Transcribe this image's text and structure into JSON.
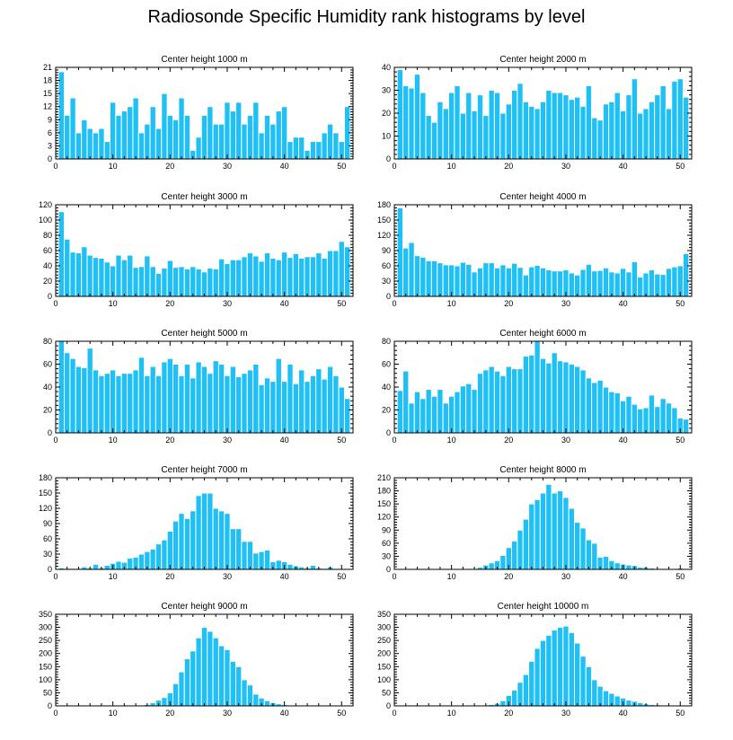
{
  "title": "Radiosonde Specific Humidity rank histograms by level",
  "colors": {
    "bar": "#1ec0f5",
    "bar_edge": "#ffffff",
    "axis": "#000000",
    "background": "#ffffff"
  },
  "chart_data": [
    {
      "type": "bar",
      "title": "Center height 1000 m",
      "xlabel": "",
      "ylabel": "",
      "xlim": [
        0,
        52
      ],
      "ylim": [
        0,
        21
      ],
      "xticks": [
        0,
        10,
        20,
        30,
        40,
        50
      ],
      "yticks": [
        0,
        3,
        6,
        9,
        12,
        15,
        18,
        21
      ],
      "x": [
        1,
        2,
        3,
        4,
        5,
        6,
        7,
        8,
        9,
        10,
        11,
        12,
        13,
        14,
        15,
        16,
        17,
        18,
        19,
        20,
        21,
        22,
        23,
        24,
        25,
        26,
        27,
        28,
        29,
        30,
        31,
        32,
        33,
        34,
        35,
        36,
        37,
        38,
        39,
        40,
        41,
        42,
        43,
        44,
        45,
        46,
        47,
        48,
        49,
        50,
        51
      ],
      "values": [
        20,
        10,
        14,
        6,
        9,
        7,
        6,
        7,
        4,
        13,
        10,
        11,
        12,
        14,
        6,
        8,
        12,
        7,
        15,
        10,
        9,
        14,
        10,
        2,
        5,
        10,
        12,
        8,
        8,
        13,
        11,
        13,
        8,
        10,
        13,
        6,
        10,
        8,
        11,
        12,
        4,
        5,
        5,
        2,
        4,
        4,
        6,
        8,
        6,
        4,
        12
      ]
    },
    {
      "type": "bar",
      "title": "Center height 2000 m",
      "xlabel": "",
      "ylabel": "",
      "xlim": [
        0,
        52
      ],
      "ylim": [
        0,
        40
      ],
      "xticks": [
        0,
        10,
        20,
        30,
        40,
        50
      ],
      "yticks": [
        0,
        10,
        20,
        30,
        40
      ],
      "x": [
        1,
        2,
        3,
        4,
        5,
        6,
        7,
        8,
        9,
        10,
        11,
        12,
        13,
        14,
        15,
        16,
        17,
        18,
        19,
        20,
        21,
        22,
        23,
        24,
        25,
        26,
        27,
        28,
        29,
        30,
        31,
        32,
        33,
        34,
        35,
        36,
        37,
        38,
        39,
        40,
        41,
        42,
        43,
        44,
        45,
        46,
        47,
        48,
        49,
        50,
        51
      ],
      "values": [
        39,
        32,
        31,
        37,
        29,
        19,
        16,
        25,
        22,
        29,
        32,
        20,
        29,
        21,
        28,
        19,
        30,
        29,
        20,
        24,
        30,
        33,
        25,
        23,
        22,
        25,
        30,
        29,
        29,
        28,
        26,
        27,
        23,
        32,
        18,
        17,
        24,
        25,
        29,
        21,
        28,
        35,
        20,
        22,
        25,
        28,
        32,
        22,
        34,
        35,
        27
      ]
    },
    {
      "type": "bar",
      "title": "Center height 3000 m",
      "xlabel": "",
      "ylabel": "",
      "xlim": [
        0,
        52
      ],
      "ylim": [
        0,
        120
      ],
      "xticks": [
        0,
        10,
        20,
        30,
        40,
        50
      ],
      "yticks": [
        0,
        20,
        40,
        60,
        80,
        100,
        120
      ],
      "x": [
        1,
        2,
        3,
        4,
        5,
        6,
        7,
        8,
        9,
        10,
        11,
        12,
        13,
        14,
        15,
        16,
        17,
        18,
        19,
        20,
        21,
        22,
        23,
        24,
        25,
        26,
        27,
        28,
        29,
        30,
        31,
        32,
        33,
        34,
        35,
        36,
        37,
        38,
        39,
        40,
        41,
        42,
        43,
        44,
        45,
        46,
        47,
        48,
        49,
        50,
        51
      ],
      "values": [
        111,
        75,
        58,
        57,
        65,
        54,
        51,
        50,
        45,
        40,
        54,
        48,
        54,
        38,
        39,
        53,
        39,
        30,
        37,
        47,
        38,
        39,
        36,
        39,
        36,
        32,
        37,
        36,
        49,
        43,
        48,
        48,
        52,
        57,
        53,
        46,
        57,
        50,
        48,
        58,
        51,
        56,
        50,
        52,
        52,
        57,
        50,
        60,
        60,
        72,
        65
      ]
    },
    {
      "type": "bar",
      "title": "Center height 4000 m",
      "xlabel": "",
      "ylabel": "",
      "xlim": [
        0,
        52
      ],
      "ylim": [
        0,
        180
      ],
      "xticks": [
        0,
        10,
        20,
        30,
        40,
        50
      ],
      "yticks": [
        0,
        30,
        60,
        90,
        120,
        150,
        180
      ],
      "x": [
        1,
        2,
        3,
        4,
        5,
        6,
        7,
        8,
        9,
        10,
        11,
        12,
        13,
        14,
        15,
        16,
        17,
        18,
        19,
        20,
        21,
        22,
        23,
        24,
        25,
        26,
        27,
        28,
        29,
        30,
        31,
        32,
        33,
        34,
        35,
        36,
        37,
        38,
        39,
        40,
        41,
        42,
        43,
        44,
        45,
        46,
        47,
        48,
        49,
        50,
        51
      ],
      "values": [
        174,
        95,
        106,
        80,
        77,
        70,
        70,
        66,
        62,
        62,
        60,
        67,
        63,
        48,
        56,
        66,
        66,
        56,
        62,
        56,
        65,
        57,
        42,
        58,
        61,
        56,
        52,
        50,
        50,
        52,
        46,
        42,
        53,
        63,
        50,
        51,
        56,
        48,
        46,
        55,
        48,
        68,
        38,
        46,
        52,
        44,
        43,
        55,
        58,
        60,
        84
      ]
    },
    {
      "type": "bar",
      "title": "Center height 5000 m",
      "xlabel": "",
      "ylabel": "",
      "xlim": [
        0,
        52
      ],
      "ylim": [
        0,
        80
      ],
      "xticks": [
        0,
        10,
        20,
        30,
        40,
        50
      ],
      "yticks": [
        0,
        20,
        40,
        60,
        80
      ],
      "x": [
        1,
        2,
        3,
        4,
        5,
        6,
        7,
        8,
        9,
        10,
        11,
        12,
        13,
        14,
        15,
        16,
        17,
        18,
        19,
        20,
        21,
        22,
        23,
        24,
        25,
        26,
        27,
        28,
        29,
        30,
        31,
        32,
        33,
        34,
        35,
        36,
        37,
        38,
        39,
        40,
        41,
        42,
        43,
        44,
        45,
        46,
        47,
        48,
        49,
        50,
        51
      ],
      "values": [
        80,
        70,
        65,
        58,
        57,
        74,
        55,
        50,
        52,
        55,
        50,
        52,
        52,
        55,
        66,
        50,
        58,
        50,
        62,
        65,
        60,
        50,
        60,
        48,
        62,
        58,
        52,
        63,
        60,
        50,
        58,
        49,
        52,
        55,
        60,
        42,
        48,
        45,
        65,
        45,
        60,
        43,
        55,
        45,
        50,
        56,
        47,
        58,
        50,
        40,
        30
      ]
    },
    {
      "type": "bar",
      "title": "Center height 6000 m",
      "xlabel": "",
      "ylabel": "",
      "xlim": [
        0,
        52
      ],
      "ylim": [
        0,
        80
      ],
      "xticks": [
        0,
        10,
        20,
        30,
        40,
        50
      ],
      "yticks": [
        0,
        20,
        40,
        60,
        80
      ],
      "x": [
        1,
        2,
        3,
        4,
        5,
        6,
        7,
        8,
        9,
        10,
        11,
        12,
        13,
        14,
        15,
        16,
        17,
        18,
        19,
        20,
        21,
        22,
        23,
        24,
        25,
        26,
        27,
        28,
        29,
        30,
        31,
        32,
        33,
        34,
        35,
        36,
        37,
        38,
        39,
        40,
        41,
        42,
        43,
        44,
        45,
        46,
        47,
        48,
        49,
        50,
        51
      ],
      "values": [
        37,
        54,
        26,
        36,
        30,
        38,
        32,
        38,
        26,
        32,
        36,
        41,
        43,
        38,
        52,
        55,
        58,
        54,
        50,
        58,
        56,
        56,
        67,
        68,
        80,
        65,
        61,
        70,
        63,
        62,
        60,
        58,
        55,
        48,
        44,
        46,
        40,
        36,
        35,
        28,
        32,
        25,
        21,
        22,
        33,
        23,
        30,
        26,
        22,
        13,
        12
      ]
    },
    {
      "type": "bar",
      "title": "Center height 7000 m",
      "xlabel": "",
      "ylabel": "",
      "xlim": [
        0,
        52
      ],
      "ylim": [
        0,
        180
      ],
      "xticks": [
        0,
        10,
        20,
        30,
        40,
        50
      ],
      "yticks": [
        0,
        30,
        60,
        90,
        120,
        150,
        180
      ],
      "x": [
        1,
        2,
        3,
        4,
        5,
        6,
        7,
        8,
        9,
        10,
        11,
        12,
        13,
        14,
        15,
        16,
        17,
        18,
        19,
        20,
        21,
        22,
        23,
        24,
        25,
        26,
        27,
        28,
        29,
        30,
        31,
        32,
        33,
        34,
        35,
        36,
        37,
        38,
        39,
        40,
        41,
        42,
        43,
        44,
        45,
        46,
        47,
        48,
        49,
        50,
        51
      ],
      "values": [
        3,
        2,
        2,
        2,
        5,
        3,
        10,
        3,
        8,
        12,
        16,
        14,
        22,
        24,
        30,
        35,
        40,
        50,
        58,
        75,
        95,
        110,
        100,
        115,
        145,
        150,
        150,
        120,
        115,
        110,
        80,
        80,
        55,
        55,
        32,
        35,
        38,
        15,
        18,
        15,
        10,
        7,
        5,
        3,
        8,
        3,
        2,
        5,
        1,
        1,
        0
      ]
    },
    {
      "type": "bar",
      "title": "Center height 8000 m",
      "xlabel": "",
      "ylabel": "",
      "xlim": [
        0,
        52
      ],
      "ylim": [
        0,
        210
      ],
      "xticks": [
        0,
        10,
        20,
        30,
        40,
        50
      ],
      "yticks": [
        0,
        30,
        60,
        90,
        120,
        150,
        180,
        210
      ],
      "x": [
        1,
        2,
        3,
        4,
        5,
        6,
        7,
        8,
        9,
        10,
        11,
        12,
        13,
        14,
        15,
        16,
        17,
        18,
        19,
        20,
        21,
        22,
        23,
        24,
        25,
        26,
        27,
        28,
        29,
        30,
        31,
        32,
        33,
        34,
        35,
        36,
        37,
        38,
        39,
        40,
        41,
        42,
        43,
        44,
        45,
        46,
        47,
        48,
        49,
        50,
        51
      ],
      "values": [
        0,
        0,
        0,
        0,
        0,
        0,
        0,
        0,
        0,
        0,
        0,
        0,
        1,
        2,
        5,
        10,
        15,
        20,
        32,
        50,
        65,
        90,
        115,
        150,
        160,
        175,
        195,
        175,
        180,
        165,
        140,
        108,
        95,
        68,
        60,
        28,
        30,
        20,
        15,
        12,
        10,
        9,
        5,
        5,
        3,
        2,
        2,
        1,
        1,
        3,
        0
      ]
    },
    {
      "type": "bar",
      "title": "Center height 9000 m",
      "xlabel": "",
      "ylabel": "",
      "xlim": [
        0,
        52
      ],
      "ylim": [
        0,
        350
      ],
      "xticks": [
        0,
        10,
        20,
        30,
        40,
        50
      ],
      "yticks": [
        0,
        50,
        100,
        150,
        200,
        250,
        300,
        350
      ],
      "x": [
        1,
        2,
        3,
        4,
        5,
        6,
        7,
        8,
        9,
        10,
        11,
        12,
        13,
        14,
        15,
        16,
        17,
        18,
        19,
        20,
        21,
        22,
        23,
        24,
        25,
        26,
        27,
        28,
        29,
        30,
        31,
        32,
        33,
        34,
        35,
        36,
        37,
        38,
        39,
        40,
        41,
        42,
        43,
        44,
        45,
        46,
        47,
        48,
        49,
        50,
        51
      ],
      "values": [
        0,
        0,
        0,
        0,
        0,
        0,
        0,
        0,
        0,
        0,
        0,
        0,
        1,
        2,
        3,
        5,
        12,
        22,
        32,
        50,
        85,
        130,
        180,
        210,
        260,
        300,
        285,
        260,
        230,
        215,
        170,
        150,
        100,
        80,
        45,
        30,
        20,
        12,
        8,
        5,
        3,
        2,
        1,
        1,
        1,
        0,
        0,
        0,
        0,
        0,
        0
      ]
    },
    {
      "type": "bar",
      "title": "Center height 10000 m",
      "xlabel": "",
      "ylabel": "",
      "xlim": [
        0,
        52
      ],
      "ylim": [
        0,
        350
      ],
      "xticks": [
        0,
        10,
        20,
        30,
        40,
        50
      ],
      "yticks": [
        0,
        50,
        100,
        150,
        200,
        250,
        300,
        350
      ],
      "x": [
        1,
        2,
        3,
        4,
        5,
        6,
        7,
        8,
        9,
        10,
        11,
        12,
        13,
        14,
        15,
        16,
        17,
        18,
        19,
        20,
        21,
        22,
        23,
        24,
        25,
        26,
        27,
        28,
        29,
        30,
        31,
        32,
        33,
        34,
        35,
        36,
        37,
        38,
        39,
        40,
        41,
        42,
        43,
        44,
        45,
        46,
        47,
        48,
        49,
        50,
        51
      ],
      "values": [
        0,
        0,
        0,
        0,
        0,
        0,
        0,
        0,
        0,
        0,
        0,
        0,
        0,
        0,
        1,
        2,
        5,
        10,
        20,
        40,
        60,
        90,
        120,
        170,
        220,
        250,
        270,
        290,
        300,
        305,
        280,
        240,
        190,
        150,
        100,
        75,
        58,
        48,
        38,
        30,
        22,
        18,
        12,
        8,
        5,
        4,
        3,
        2,
        1,
        1,
        1
      ]
    }
  ]
}
